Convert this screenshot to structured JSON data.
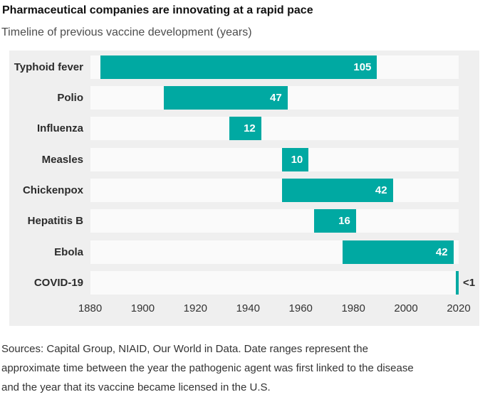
{
  "header": {
    "title": "Pharmaceutical companies are innovating at a rapid pace",
    "subtitle": "Timeline of previous vaccine development (years)"
  },
  "chart_data": {
    "type": "bar",
    "orientation": "horizontal",
    "title": "Pharmaceutical companies are innovating at a rapid pace",
    "subtitle": "Timeline of previous vaccine development (years)",
    "categories": [
      "Typhoid fever",
      "Polio",
      "Influenza",
      "Measles",
      "Chickenpox",
      "Hepatitis B",
      "Ebola",
      "COVID-19"
    ],
    "bars": [
      {
        "label": "Typhoid fever",
        "start_year": 1884,
        "end_year": 1989,
        "years": 105,
        "value_label": "105",
        "label_outside": false
      },
      {
        "label": "Polio",
        "start_year": 1908,
        "end_year": 1955,
        "years": 47,
        "value_label": "47",
        "label_outside": false
      },
      {
        "label": "Influenza",
        "start_year": 1933,
        "end_year": 1945,
        "years": 12,
        "value_label": "12",
        "label_outside": false
      },
      {
        "label": "Measles",
        "start_year": 1953,
        "end_year": 1963,
        "years": 10,
        "value_label": "10",
        "label_outside": false
      },
      {
        "label": "Chickenpox",
        "start_year": 1953,
        "end_year": 1995,
        "years": 42,
        "value_label": "42",
        "label_outside": false
      },
      {
        "label": "Hepatitis B",
        "start_year": 1965,
        "end_year": 1981,
        "years": 16,
        "value_label": "16",
        "label_outside": false
      },
      {
        "label": "Ebola",
        "start_year": 1976,
        "end_year": 2018,
        "years": 42,
        "value_label": "42",
        "label_outside": false
      },
      {
        "label": "COVID-19",
        "start_year": 2019,
        "end_year": 2020,
        "years": 1,
        "value_label": "<1",
        "label_outside": true
      }
    ],
    "x_axis": {
      "min": 1880,
      "max": 2020,
      "ticks": [
        "1880",
        "1900",
        "1920",
        "1940",
        "1960",
        "1980",
        "2000",
        "2020"
      ]
    },
    "legend": "none",
    "grid": "off",
    "colors": {
      "bar": "#00a9a2",
      "plot_background": "#efefef",
      "track": "#fafafa",
      "value_label": "#ffffff",
      "outside_label": "#2b2b2b"
    }
  },
  "footer": {
    "source_text": "Sources: Capital Group, NIAID, Our World in Data. Date ranges represent the\napproximate time between the year the pathogenic agent was first linked to the disease\nand the year that its vaccine became licensed in the U.S."
  }
}
